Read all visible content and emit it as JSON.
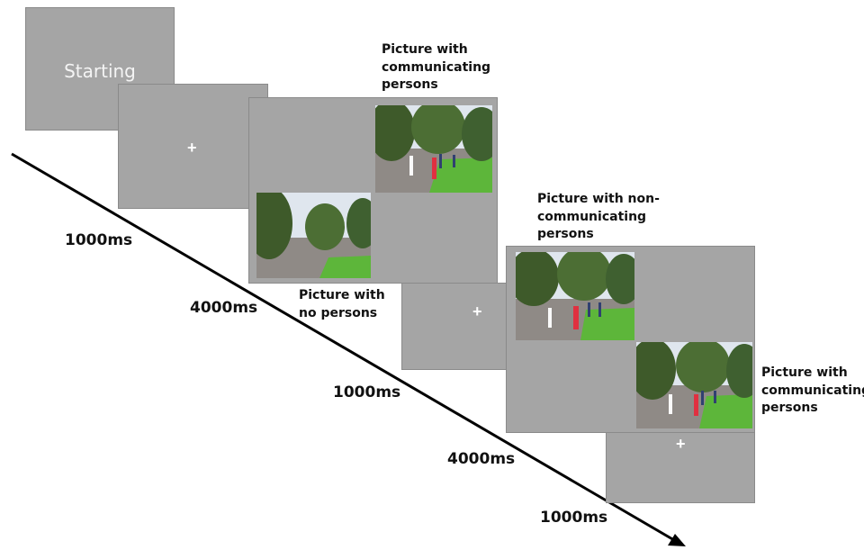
{
  "start_screen": {
    "label": "Starting"
  },
  "fixation": {
    "symbol": "+"
  },
  "captions": {
    "trial1_communicating": "Picture with communicating persons",
    "trial1_no_persons": "Picture with no persons",
    "trial2_non_communicating": "Picture with non-communicating persons",
    "trial2_communicating": "Picture with communicating persons"
  },
  "durations": {
    "d1": "1000ms",
    "d2": "4000ms",
    "d3": "1000ms",
    "d4": "4000ms",
    "d5": "1000ms"
  },
  "photo_types": {
    "communicating": "communicating-persons-photo",
    "no_persons": "no-persons-photo",
    "non_communicating": "non-communicating-persons-photo"
  },
  "colors": {
    "screen": "#a5a5a5",
    "arrow": "#000000",
    "grass": "#5db63a",
    "sky": "#dfe6ee"
  }
}
